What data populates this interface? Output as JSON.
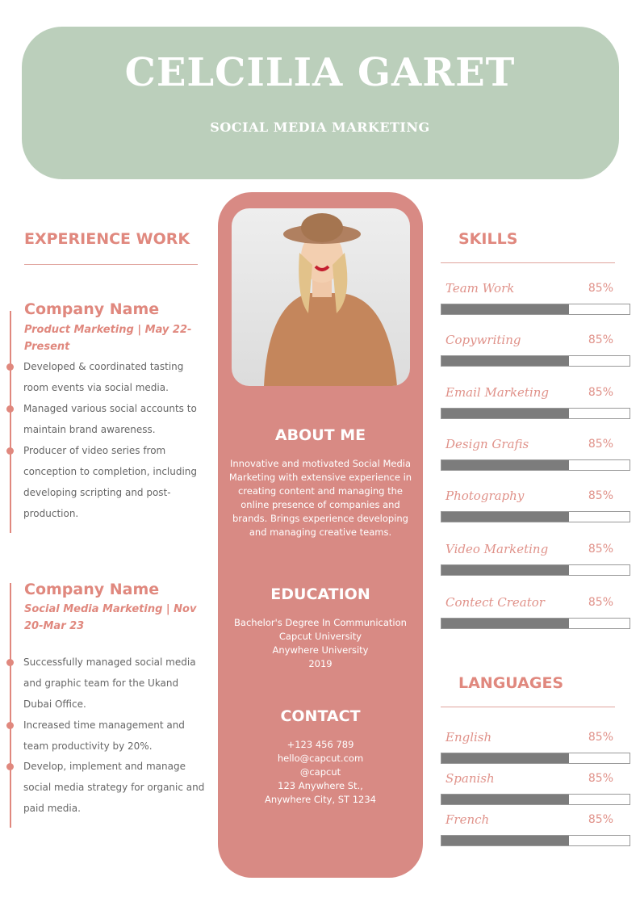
{
  "header": {
    "name": "CELCILIA GARET",
    "role": "SOCIAL MEDIA MARKETING"
  },
  "experience": {
    "title": "EXPERIENCE WORK",
    "jobs": [
      {
        "company": "Company Name",
        "position": "Product Marketing | May 22-Present",
        "bullets": [
          "Developed & coordinated tasting room events via social media.",
          "Managed various social accounts to maintain brand awareness.",
          "Producer of video series from conception to completion, including developing scripting and post-production."
        ]
      },
      {
        "company": "Company Name",
        "position": "Social Media Marketing | Nov 20-Mar 23",
        "bullets": [
          "Successfully managed social media and graphic team for the Ukand Dubai Office.",
          "Increased time management and team productivity by 20%.",
          "Develop, implement and manage social media strategy for organic and paid media."
        ]
      }
    ]
  },
  "about": {
    "title": "ABOUT ME",
    "text": "Innovative and motivated Social Media Marketing with extensive experience in creating content and managing the online presence of companies and brands. Brings experience developing and managing creative teams."
  },
  "education": {
    "title": "EDUCATION",
    "lines": [
      "Bachelor's Degree In Communication",
      "Capcut University",
      "Anywhere University",
      "2019"
    ]
  },
  "contact": {
    "title": "CONTACT",
    "lines": [
      "+123  456 789",
      "hello@capcut.com",
      "@capcut",
      "123 Anywhere St.,",
      "Anywhere City, ST 1234"
    ]
  },
  "skills": {
    "title": "SKILLS",
    "items": [
      {
        "label": "Team Work",
        "percent": "85%",
        "fill": 68
      },
      {
        "label": "Copywriting",
        "percent": "85%",
        "fill": 68
      },
      {
        "label": "Email Marketing",
        "percent": "85%",
        "fill": 68
      },
      {
        "label": "Design Grafis",
        "percent": "85%",
        "fill": 68
      },
      {
        "label": "Photography",
        "percent": "85%",
        "fill": 68
      },
      {
        "label": "Video Marketing",
        "percent": "85%",
        "fill": 68
      },
      {
        "label": "Contect Creator",
        "percent": "85%",
        "fill": 68
      }
    ]
  },
  "languages": {
    "title": "LANGUAGES",
    "items": [
      {
        "label": "English",
        "percent": "85%",
        "fill": 68
      },
      {
        "label": "Spanish",
        "percent": "85%",
        "fill": 68
      },
      {
        "label": "French",
        "percent": "85%",
        "fill": 68
      }
    ]
  },
  "colors": {
    "accent": "#e0887e",
    "header_bg": "#bbcfbb",
    "center_bg": "#d88a84",
    "bar_fill": "#7c7c7c"
  }
}
